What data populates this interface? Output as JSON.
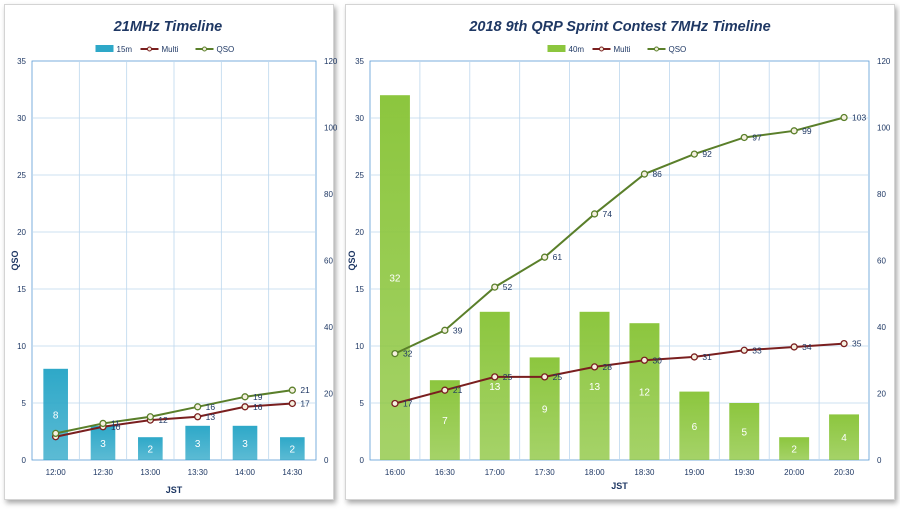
{
  "chart_data": [
    {
      "type": "bar",
      "title": "21MHz Timeline",
      "xlabel": "JST",
      "ylabel": "QSO",
      "ylim": [
        0,
        35
      ],
      "y2lim": [
        0,
        120
      ],
      "yticks": [
        0,
        5,
        10,
        15,
        20,
        25,
        30,
        35
      ],
      "y2ticks": [
        0,
        20,
        40,
        60,
        80,
        100,
        120
      ],
      "categories": [
        "12:00",
        "12:30",
        "13:00",
        "13:30",
        "14:00",
        "14:30"
      ],
      "grid": true,
      "legend_position": "top",
      "series": [
        {
          "name": "15m",
          "kind": "bar",
          "axis": "left",
          "color": "#2ea8c8",
          "values": [
            8,
            3,
            2,
            3,
            3,
            2
          ],
          "labels": [
            "8",
            "3",
            "2",
            "3",
            "3",
            "2"
          ]
        },
        {
          "name": "Multi",
          "kind": "line",
          "axis": "right",
          "color": "#7a1f1f",
          "values": [
            7,
            10,
            12,
            13,
            16,
            17
          ],
          "labels": [
            "",
            "10",
            "12",
            "13",
            "16",
            "17"
          ]
        },
        {
          "name": "QSO",
          "kind": "line",
          "axis": "right",
          "color": "#5a7f2a",
          "values": [
            8,
            11,
            13,
            16,
            19,
            21
          ],
          "labels": [
            "",
            "11",
            "",
            "16",
            "19",
            "21"
          ]
        }
      ]
    },
    {
      "type": "bar",
      "title": "2018 9th QRP Sprint Contest 7MHz Timeline",
      "xlabel": "JST",
      "ylabel": "QSO",
      "ylim": [
        0,
        35
      ],
      "y2lim": [
        0,
        120
      ],
      "yticks": [
        0,
        5,
        10,
        15,
        20,
        25,
        30,
        35
      ],
      "y2ticks": [
        0,
        20,
        40,
        60,
        80,
        100,
        120
      ],
      "categories": [
        "16:00",
        "16:30",
        "17:00",
        "17:30",
        "18:00",
        "18:30",
        "19:00",
        "19:30",
        "20:00",
        "20:30"
      ],
      "grid": true,
      "legend_position": "top",
      "series": [
        {
          "name": "40m",
          "kind": "bar",
          "axis": "left",
          "color": "#8cc63e",
          "values": [
            32,
            7,
            13,
            9,
            13,
            12,
            6,
            5,
            2,
            4
          ],
          "labels": [
            "32",
            "7",
            "13",
            "9",
            "13",
            "12",
            "6",
            "5",
            "2",
            "4"
          ]
        },
        {
          "name": "Multi",
          "kind": "line",
          "axis": "right",
          "color": "#7a1f1f",
          "values": [
            17,
            21,
            25,
            25,
            28,
            30,
            31,
            33,
            34,
            35
          ],
          "labels": [
            "17",
            "21",
            "25",
            "25",
            "28",
            "30",
            "31",
            "33",
            "34",
            "35"
          ]
        },
        {
          "name": "QSO",
          "kind": "line",
          "axis": "right",
          "color": "#5a7f2a",
          "values": [
            32,
            39,
            52,
            61,
            74,
            86,
            92,
            97,
            99,
            103
          ],
          "labels": [
            "32",
            "39",
            "52",
            "61",
            "74",
            "86",
            "92",
            "97",
            "99",
            "103"
          ]
        }
      ]
    }
  ]
}
